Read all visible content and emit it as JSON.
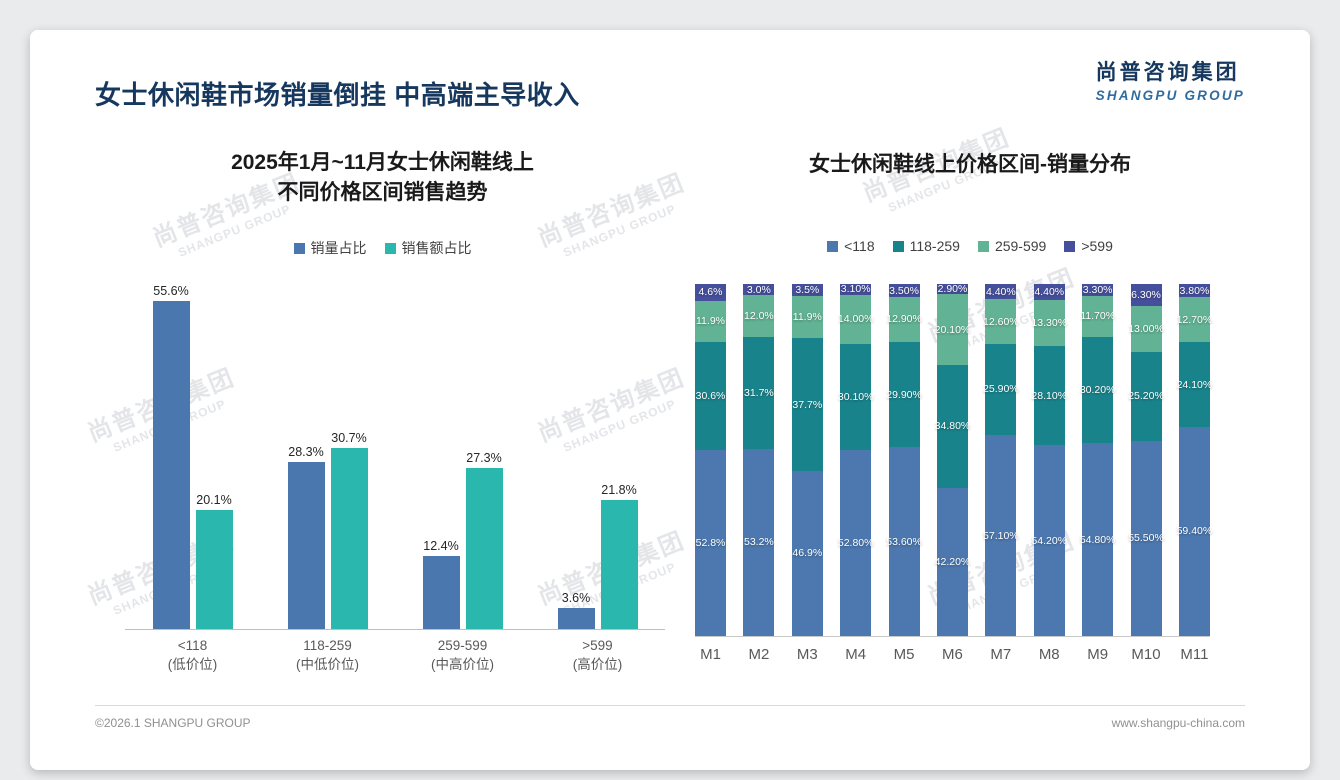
{
  "page": {
    "title": "女士休闲鞋市场销量倒挂 中高端主导收入",
    "logo": {
      "cn": "尚普咨询集团",
      "en": "SHANGPU GROUP"
    },
    "watermark": {
      "cn": "尚普咨询集团",
      "en": "SHANGPU GROUP"
    },
    "footer": {
      "copyright": "©2026.1 SHANGPU GROUP",
      "website": "www.shangpu-china.com"
    }
  },
  "chart_data": [
    {
      "type": "bar",
      "title": "2025年1月~11月女士休闲鞋线上不同价格区间销售趋势",
      "title_lines": [
        "2025年1月~11月女士休闲鞋线上",
        "不同价格区间销售趋势"
      ],
      "categories": [
        {
          "label": "<118",
          "sub": "(低价位)"
        },
        {
          "label": "118-259",
          "sub": "(中低价位)"
        },
        {
          "label": "259-599",
          "sub": "(中高价位)"
        },
        {
          "label": ">599",
          "sub": "(高价位)"
        }
      ],
      "series": [
        {
          "name": "销量占比",
          "color": "#4a77ad",
          "values": [
            55.6,
            28.3,
            12.4,
            3.6
          ],
          "labels": [
            "55.6%",
            "28.3%",
            "12.4%",
            "3.6%"
          ]
        },
        {
          "name": "销售额占比",
          "color": "#29b7ae",
          "values": [
            20.1,
            30.7,
            27.3,
            21.8
          ],
          "labels": [
            "20.1%",
            "30.7%",
            "27.3%",
            "21.8%"
          ]
        }
      ],
      "ylim": [
        0,
        60
      ],
      "grid": false,
      "legend_position": "top"
    },
    {
      "type": "stacked-bar",
      "title": "女士休闲鞋线上价格区间-销量分布",
      "categories": [
        "M1",
        "M2",
        "M3",
        "M4",
        "M5",
        "M6",
        "M7",
        "M8",
        "M9",
        "M10",
        "M11"
      ],
      "series": [
        {
          "name": "<118",
          "color": "#4c78af",
          "values": [
            52.8,
            53.2,
            46.9,
            52.8,
            53.6,
            42.2,
            57.1,
            54.2,
            54.8,
            55.5,
            59.4
          ],
          "labels": [
            "52.8%",
            "53.2%",
            "46.9%",
            "52.80%",
            "53.60%",
            "42.20%",
            "57.10%",
            "54.20%",
            "54.80%",
            "55.50%",
            "59.40%"
          ]
        },
        {
          "name": "118-259",
          "color": "#19838b",
          "values": [
            30.6,
            31.7,
            37.7,
            30.1,
            29.9,
            34.8,
            25.9,
            28.1,
            30.2,
            25.2,
            24.1
          ],
          "labels": [
            "30.6%",
            "31.7%",
            "37.7%",
            "30.10%",
            "29.90%",
            "34.80%",
            "25.90%",
            "28.10%",
            "30.20%",
            "25.20%",
            "24.10%"
          ]
        },
        {
          "name": "259-599",
          "color": "#62b295",
          "values": [
            11.9,
            12.0,
            11.9,
            14.0,
            12.9,
            20.1,
            12.6,
            13.3,
            11.7,
            13.0,
            12.7
          ],
          "labels": [
            "11.9%",
            "12.0%",
            "11.9%",
            "14.00%",
            "12.90%",
            "20.10%",
            "12.60%",
            "13.30%",
            "11.70%",
            "13.00%",
            "12.70%"
          ]
        },
        {
          "name": ">599",
          "color": "#454f9b",
          "values": [
            4.6,
            3.0,
            3.5,
            3.1,
            3.5,
            2.9,
            4.4,
            4.4,
            3.3,
            6.3,
            3.8
          ],
          "labels": [
            "4.6%",
            "3.0%",
            "3.5%",
            "3.10%",
            "3.50%",
            "2.90%",
            "4.40%",
            "4.40%",
            "3.30%",
            "6.30%",
            "3.80%"
          ]
        }
      ],
      "ylim": [
        0,
        100
      ],
      "grid": false,
      "legend_position": "top"
    }
  ]
}
